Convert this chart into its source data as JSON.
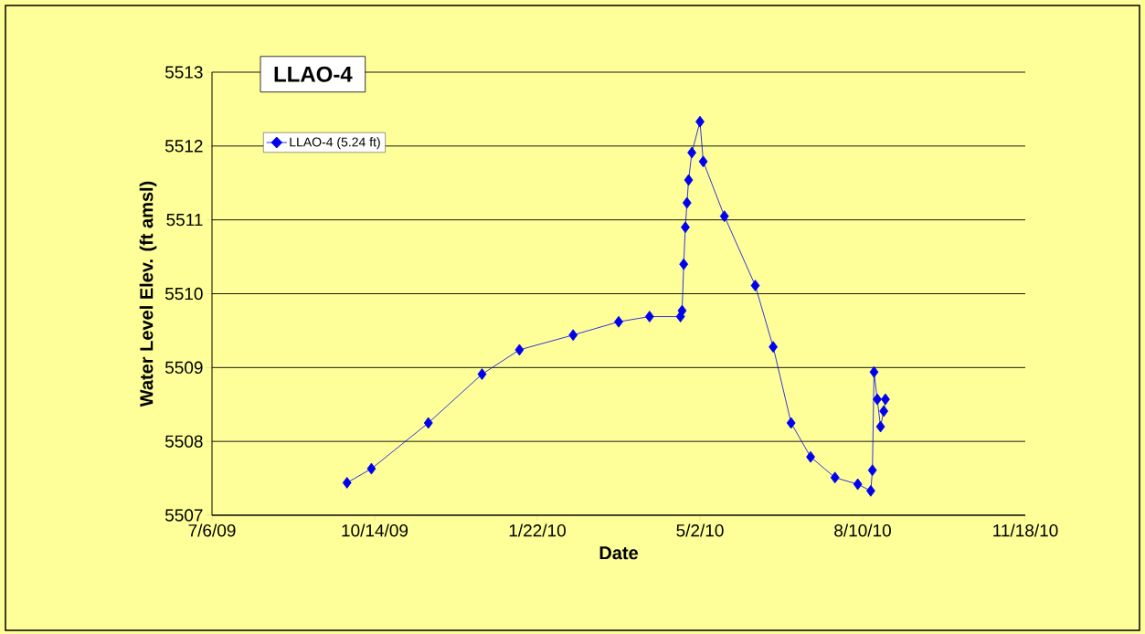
{
  "chart_data": {
    "type": "line",
    "title": "LLAO-4",
    "xlabel": "Date",
    "ylabel": "Water Level Elev. (ft amsl)",
    "x": [
      "2009-09-27",
      "2009-10-12",
      "2009-11-16",
      "2009-12-19",
      "2010-01-11",
      "2010-02-13",
      "2010-03-13",
      "2010-04-01",
      "2010-04-20",
      "2010-04-21",
      "2010-04-22",
      "2010-04-23",
      "2010-04-24",
      "2010-04-25",
      "2010-04-27",
      "2010-05-02",
      "2010-05-04",
      "2010-05-17",
      "2010-06-05",
      "2010-06-16",
      "2010-06-27",
      "2010-07-09",
      "2010-07-24",
      "2010-08-07",
      "2010-08-15",
      "2010-08-16",
      "2010-08-17",
      "2010-08-19",
      "2010-08-21",
      "2010-08-23",
      "2010-08-24"
    ],
    "series": [
      {
        "name": "LLAO-4 (5.24 ft)",
        "color": "#0000ee",
        "values": [
          5507.44,
          5507.63,
          5508.25,
          5508.91,
          5509.24,
          5509.44,
          5509.62,
          5509.69,
          5509.69,
          5509.77,
          5510.4,
          5510.9,
          5511.23,
          5511.54,
          5511.91,
          5512.33,
          5511.79,
          5511.05,
          5510.11,
          5509.28,
          5508.25,
          5507.79,
          5507.51,
          5507.42,
          5507.33,
          5507.61,
          5508.94,
          5508.57,
          5508.2,
          5508.41,
          5508.57
        ]
      }
    ],
    "xlim": [
      "2009-07-06",
      "2010-11-18"
    ],
    "xticks": [
      {
        "value": "2009-07-06",
        "label": "7/6/09"
      },
      {
        "value": "2009-10-14",
        "label": "10/14/09"
      },
      {
        "value": "2010-01-22",
        "label": "1/22/10"
      },
      {
        "value": "2010-05-02",
        "label": "5/2/10"
      },
      {
        "value": "2010-08-10",
        "label": "8/10/10"
      },
      {
        "value": "2010-11-18",
        "label": "11/18/10"
      }
    ],
    "ylim": [
      5507,
      5513
    ],
    "yticks": [
      5507,
      5508,
      5509,
      5510,
      5511,
      5512,
      5513
    ],
    "grid": "y",
    "legend": "top left",
    "marker": "diamond",
    "line_style": "solid"
  }
}
